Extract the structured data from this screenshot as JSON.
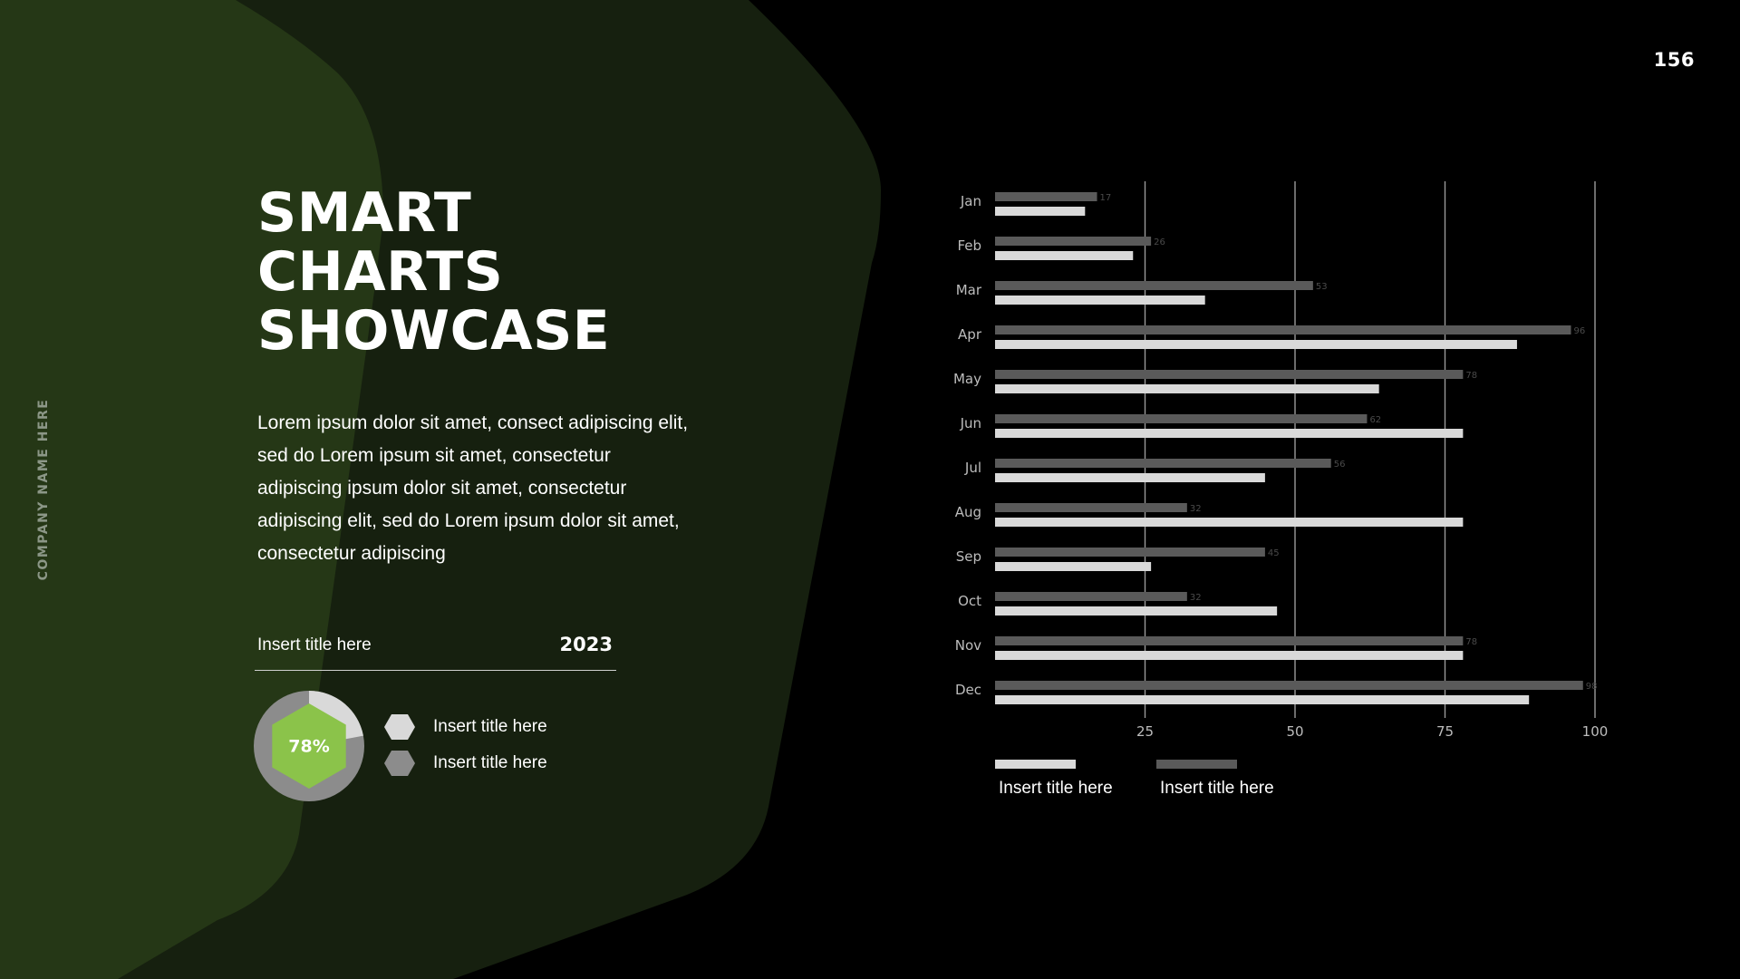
{
  "page_number": "156",
  "company_name": "COMPANY NAME HERE",
  "title_lines": [
    "SMART",
    "CHARTS",
    "SHOWCASE"
  ],
  "body_text": "Lorem ipsum dolor sit amet, consect adipiscing elit, sed do Lorem ipsum sit amet, consectetur adipiscing ipsum dolor sit amet, consectetur adipiscing elit, sed do Lorem ipsum dolor sit amet, consectetur adipiscing",
  "summary": {
    "label": "Insert title here",
    "year": "2023",
    "percent_label": "78%",
    "percent_value": 78,
    "legend": [
      {
        "label": "Insert title here",
        "color": "#d9d9d9"
      },
      {
        "label": "Insert title here",
        "color": "#8c8c8c"
      }
    ]
  },
  "colors": {
    "accent_green": "#8bc34a",
    "shape_dark_green": "#16200f",
    "shape_light_green": "#253716",
    "bar_dark": "#5a5a5a",
    "bar_light": "#d9d9d9",
    "donut_light": "#d9d9d9",
    "donut_dark": "#8c8c8c"
  },
  "chart_data": {
    "type": "bar",
    "orientation": "horizontal",
    "categories": [
      "Jan",
      "Feb",
      "Mar",
      "Apr",
      "May",
      "Jun",
      "Jul",
      "Aug",
      "Sep",
      "Oct",
      "Nov",
      "Dec"
    ],
    "series": [
      {
        "name": "Insert title here",
        "color": "#5a5a5a",
        "values": [
          17,
          26,
          53,
          96,
          78,
          62,
          56,
          32,
          45,
          32,
          78,
          98
        ],
        "data_labels": [
          "17",
          "26",
          "53",
          "96",
          "78",
          "62",
          "56",
          "32",
          "45",
          "32",
          "78",
          "98"
        ]
      },
      {
        "name": "Insert title here",
        "color": "#d9d9d9",
        "values": [
          15,
          23,
          35,
          87,
          64,
          78,
          45,
          78,
          26,
          47,
          78,
          89
        ]
      }
    ],
    "xlim": [
      0,
      100
    ],
    "xticks": [
      25,
      50,
      75,
      100
    ],
    "grid": true,
    "legend_position": "bottom-left",
    "legend": [
      {
        "label": "Insert title here",
        "color": "#d9d9d9"
      },
      {
        "label": "Insert title here",
        "color": "#5a5a5a"
      }
    ]
  }
}
